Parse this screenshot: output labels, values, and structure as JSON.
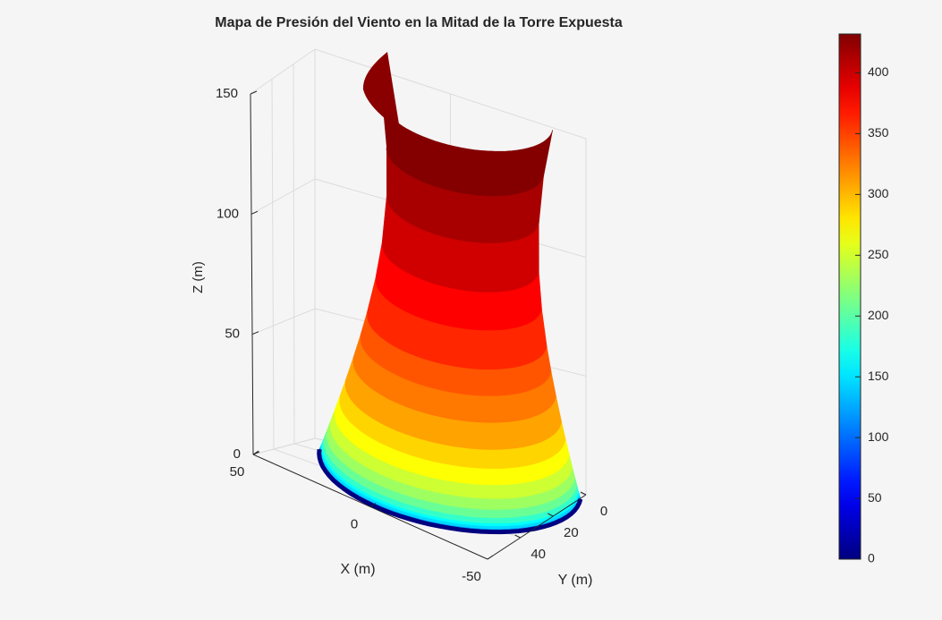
{
  "chart_data": {
    "type": "surface",
    "title": "Mapa de Presión del Viento en la Mitad de la Torre Expuesta",
    "xlabel": "X (m)",
    "ylabel": "Y (m)",
    "zlabel": "Z (m)",
    "xlim": [
      -50,
      50
    ],
    "xticks": [
      -50,
      0,
      50
    ],
    "ylim": [
      0,
      60
    ],
    "yticks": [
      0,
      20,
      40
    ],
    "zlim": [
      0,
      150
    ],
    "zticks": [
      0,
      50,
      100,
      150
    ],
    "z": [
      0,
      0.5,
      1,
      2,
      3,
      5,
      8,
      12,
      17,
      23,
      30,
      40,
      50,
      60,
      75,
      90,
      110,
      130,
      150
    ],
    "values": [
      0,
      103,
      123,
      146,
      162,
      184,
      207,
      229,
      249,
      269,
      288,
      309,
      327,
      342,
      362,
      378,
      398,
      415,
      430
    ],
    "colormap": "jet",
    "clim": [
      0,
      432
    ],
    "cticks": [
      0,
      50,
      100,
      150,
      200,
      250,
      300,
      350,
      400
    ],
    "grid": true
  }
}
